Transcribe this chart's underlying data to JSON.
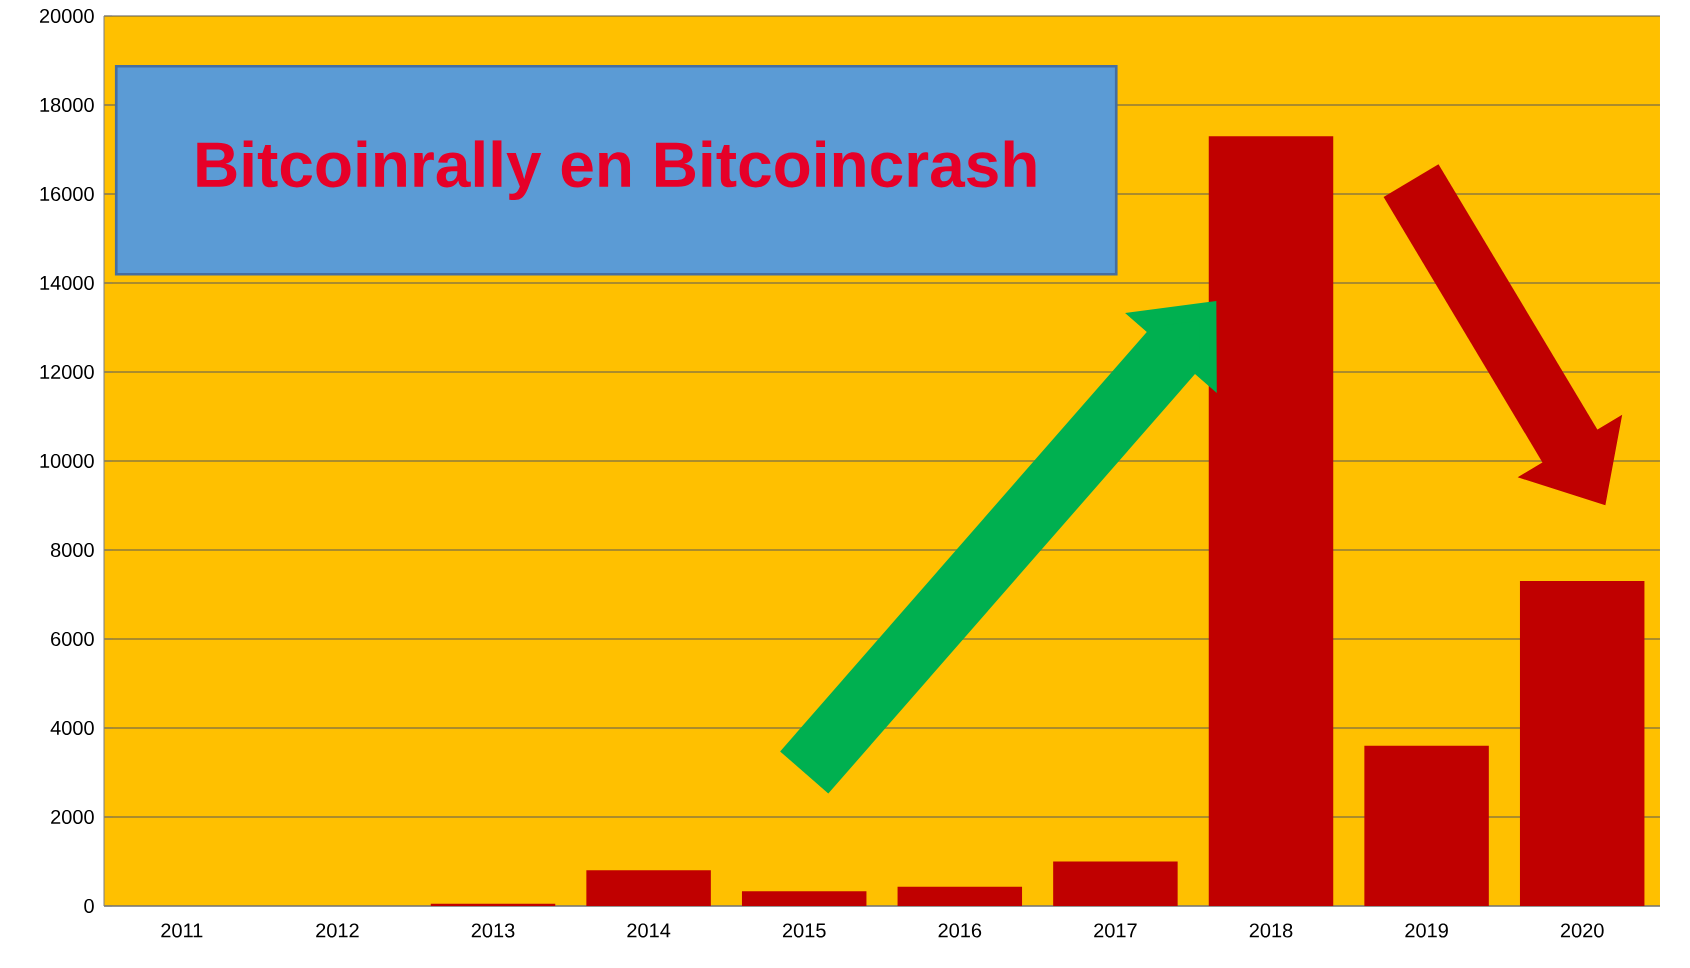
{
  "chart_data": {
    "type": "bar",
    "title": "Bitcoinrally en Bitcoincrash",
    "categories": [
      "2011",
      "2012",
      "2013",
      "2014",
      "2015",
      "2016",
      "2017",
      "2018",
      "2019",
      "2020"
    ],
    "values": [
      0,
      0,
      50,
      800,
      330,
      430,
      1000,
      17300,
      3600,
      7300
    ],
    "color": "#c00000",
    "ylim": [
      0,
      20000
    ],
    "yticks": [
      0,
      2000,
      4000,
      6000,
      8000,
      10000,
      12000,
      14000,
      16000,
      18000,
      20000
    ],
    "grid": "y"
  }
}
